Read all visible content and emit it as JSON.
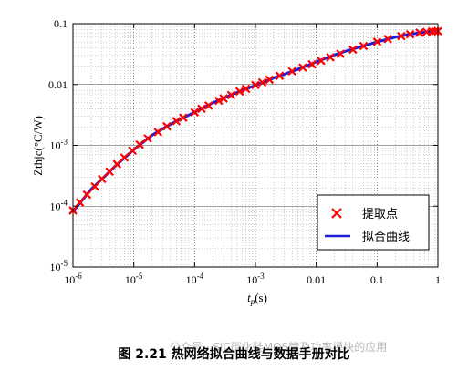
{
  "caption": "图 2.21 热网络拟合曲线与数据手册对比",
  "watermark": "公众号 · SiC碳化硅MOS管及功率模块的应用",
  "chart_data": {
    "type": "line",
    "title": "",
    "xlabel_main": "t",
    "xlabel_sub": "p",
    "xlabel_unit": "(s)",
    "ylabel": "Zthjc(°C/W)",
    "x_scale": "log",
    "y_scale": "log",
    "xlim": [
      1e-06,
      1
    ],
    "ylim": [
      1e-05,
      0.1
    ],
    "x_ticks": [
      {
        "value": 1e-06,
        "base": "10",
        "exp": "-6"
      },
      {
        "value": 1e-05,
        "base": "10",
        "exp": "-5"
      },
      {
        "value": 0.0001,
        "base": "10",
        "exp": "-4"
      },
      {
        "value": 0.001,
        "base": "10",
        "exp": "-3"
      },
      {
        "value": 0.01,
        "base": "0.01",
        "exp": ""
      },
      {
        "value": 0.1,
        "base": "0.1",
        "exp": ""
      },
      {
        "value": 1,
        "base": "1",
        "exp": ""
      }
    ],
    "y_ticks": [
      {
        "value": 1e-05,
        "base": "10",
        "exp": "-5"
      },
      {
        "value": 0.0001,
        "base": "10",
        "exp": "-4"
      },
      {
        "value": 0.001,
        "base": "10",
        "exp": "-3"
      },
      {
        "value": 0.01,
        "base": "0.01",
        "exp": ""
      },
      {
        "value": 0.1,
        "base": "0.1",
        "exp": ""
      }
    ],
    "grid": true,
    "legend_position": "lower-right",
    "series": [
      {
        "name": "提取点",
        "kind": "markers",
        "marker": "x",
        "color": "#ff0000",
        "x": [
          1e-06,
          1.3e-06,
          1.7e-06,
          2.3e-06,
          3e-06,
          4e-06,
          5.3e-06,
          7e-06,
          9.5e-06,
          1.25e-05,
          1.7e-05,
          2.5e-05,
          3.5e-05,
          5e-05,
          6.5e-05,
          0.0001,
          0.00013,
          0.00017,
          0.00025,
          0.0003,
          0.0004,
          0.00055,
          0.0007,
          0.001,
          0.0013,
          0.0017,
          0.0025,
          0.004,
          0.006,
          0.0085,
          0.012,
          0.017,
          0.025,
          0.04,
          0.06,
          0.1,
          0.15,
          0.25,
          0.35,
          0.5,
          0.65,
          0.8,
          0.9,
          1.0
        ],
        "y": [
          8.5e-05,
          0.000115,
          0.000155,
          0.00021,
          0.00028,
          0.00037,
          0.00049,
          0.00063,
          0.00082,
          0.00103,
          0.0013,
          0.00165,
          0.00205,
          0.0025,
          0.00285,
          0.0035,
          0.004,
          0.0045,
          0.0054,
          0.0059,
          0.0067,
          0.0077,
          0.0085,
          0.0098,
          0.0108,
          0.012,
          0.0139,
          0.0165,
          0.019,
          0.0215,
          0.0245,
          0.028,
          0.032,
          0.0375,
          0.043,
          0.0505,
          0.056,
          0.0625,
          0.067,
          0.071,
          0.073,
          0.0745,
          0.075,
          0.0752
        ]
      },
      {
        "name": "拟合曲线",
        "kind": "line",
        "color": "#1f1fd6",
        "x": [
          1e-06,
          2e-06,
          3e-06,
          5e-06,
          1e-05,
          2e-05,
          3e-05,
          5e-05,
          0.0001,
          0.0002,
          0.0003,
          0.0005,
          0.001,
          0.002,
          0.003,
          0.005,
          0.01,
          0.02,
          0.03,
          0.05,
          0.1,
          0.2,
          0.3,
          0.5,
          1.0
        ],
        "y": [
          8.2e-05,
          0.00019,
          0.00028,
          0.00046,
          0.00085,
          0.00147,
          0.00188,
          0.0025,
          0.0035,
          0.005,
          0.006,
          0.0074,
          0.0097,
          0.0128,
          0.0148,
          0.0178,
          0.0235,
          0.0308,
          0.0352,
          0.041,
          0.05,
          0.06,
          0.0655,
          0.071,
          0.0752
        ]
      }
    ]
  }
}
